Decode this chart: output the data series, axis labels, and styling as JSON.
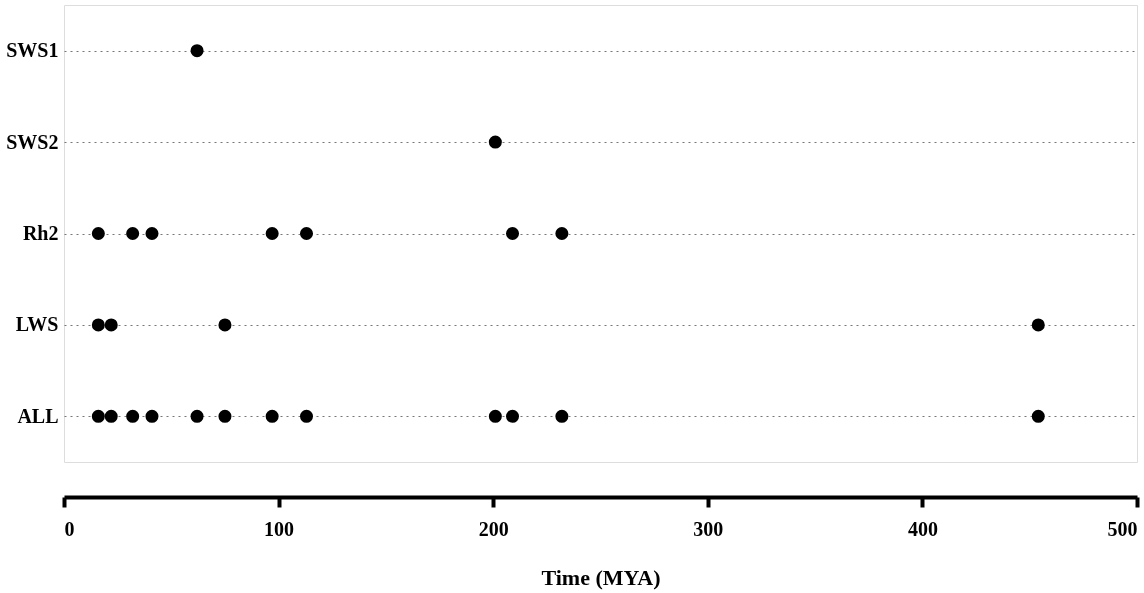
{
  "chart_data": {
    "type": "scatter",
    "orientation": "horizontal",
    "xlabel": "Time (MYA)",
    "categories": [
      "SWS1",
      "SWS2",
      "Rh2",
      "LWS",
      "ALL"
    ],
    "xlim": [
      0,
      500
    ],
    "xticks": [
      0,
      100,
      200,
      300,
      400,
      500
    ],
    "grid": "y",
    "marker": "circle",
    "series": [
      {
        "color": "#000000",
        "values": [
          62,
          201,
          16,
          16,
          16
        ]
      },
      {
        "color": "#000000",
        "values": [
          null,
          null,
          32,
          22,
          22
        ]
      },
      {
        "color": "#000000",
        "values": [
          null,
          null,
          41,
          75,
          32
        ]
      },
      {
        "color": "#000000",
        "values": [
          null,
          null,
          97,
          454,
          41
        ]
      },
      {
        "color": "#000000",
        "values": [
          null,
          null,
          113,
          null,
          62
        ]
      },
      {
        "color": "#000000",
        "values": [
          null,
          null,
          209,
          null,
          75
        ]
      },
      {
        "color": "#000000",
        "values": [
          null,
          null,
          232,
          null,
          97
        ]
      },
      {
        "color": "#000000",
        "values": [
          null,
          null,
          null,
          null,
          113
        ]
      },
      {
        "color": "#000000",
        "values": [
          null,
          null,
          null,
          null,
          201
        ]
      },
      {
        "color": "#000000",
        "values": [
          null,
          null,
          null,
          null,
          209
        ]
      },
      {
        "color": "#000000",
        "values": [
          null,
          null,
          null,
          null,
          232
        ]
      },
      {
        "color": "#000000",
        "values": [
          null,
          null,
          null,
          null,
          454
        ]
      }
    ]
  }
}
